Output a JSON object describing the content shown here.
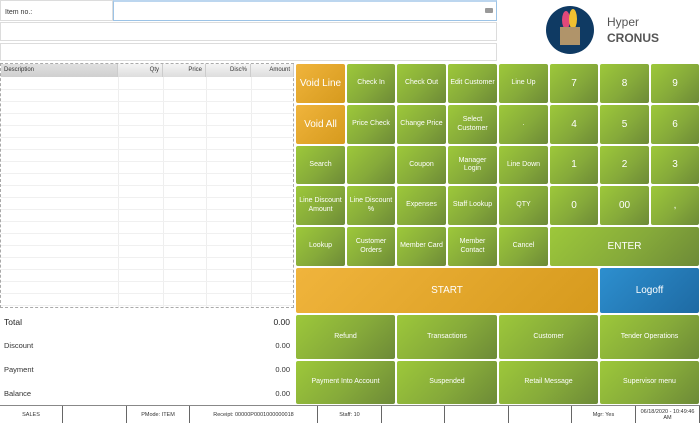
{
  "item_field": {
    "label": "Item no.:",
    "value": "",
    "keyboard_icon": "keyboard-icon"
  },
  "table": {
    "headers": [
      "Description",
      "Qty",
      "Price",
      "Disc%",
      "Amount"
    ],
    "rows": []
  },
  "totals": [
    {
      "label": "Total",
      "value": "0.00"
    },
    {
      "label": "Discount",
      "value": "0.00"
    },
    {
      "label": "Payment",
      "value": "0.00"
    },
    {
      "label": "Balance",
      "value": "0.00"
    }
  ],
  "logo": {
    "line1": "Hyper",
    "line2": "CRONUS"
  },
  "grid_rows": [
    [
      "Void Line",
      "Check In",
      "Check Out",
      "Edit Customer",
      "Line Up",
      "7",
      "8",
      "9"
    ],
    [
      "Void All",
      "Price Check",
      "Change Price",
      "Select Customer",
      ".",
      "4",
      "5",
      "6"
    ],
    [
      "Search",
      "",
      "Coupon",
      "Manager Login",
      "Line Down",
      "1",
      "2",
      "3"
    ],
    [
      "Line Discount Amount",
      "Line Discount %",
      "Expenses",
      "Staff Lookup",
      "QTY",
      "0",
      "00",
      ","
    ],
    [
      "Lookup",
      "Customer Orders",
      "Member Card",
      "Member Contact",
      "Cancel",
      "ENTER"
    ]
  ],
  "start_label": "START",
  "logoff_label": "Logoff",
  "bottom_buttons": [
    [
      "Refund",
      "Transactions",
      "Customer",
      "Tender Operations"
    ],
    [
      "Payment Into Account",
      "Suspended",
      "Retail Message",
      "Supervisor menu"
    ]
  ],
  "status": [
    "SALES",
    "",
    "PMode: ITEM",
    "Receipt: 00000P0001000000018",
    "Staff: 10",
    "",
    "",
    "",
    "Mgr: Yes",
    "06/18/2020 - 10:49:46 AM"
  ],
  "colors": {
    "green": "#8db33a",
    "orange": "#e0a52a",
    "blue": "#2680c0"
  }
}
